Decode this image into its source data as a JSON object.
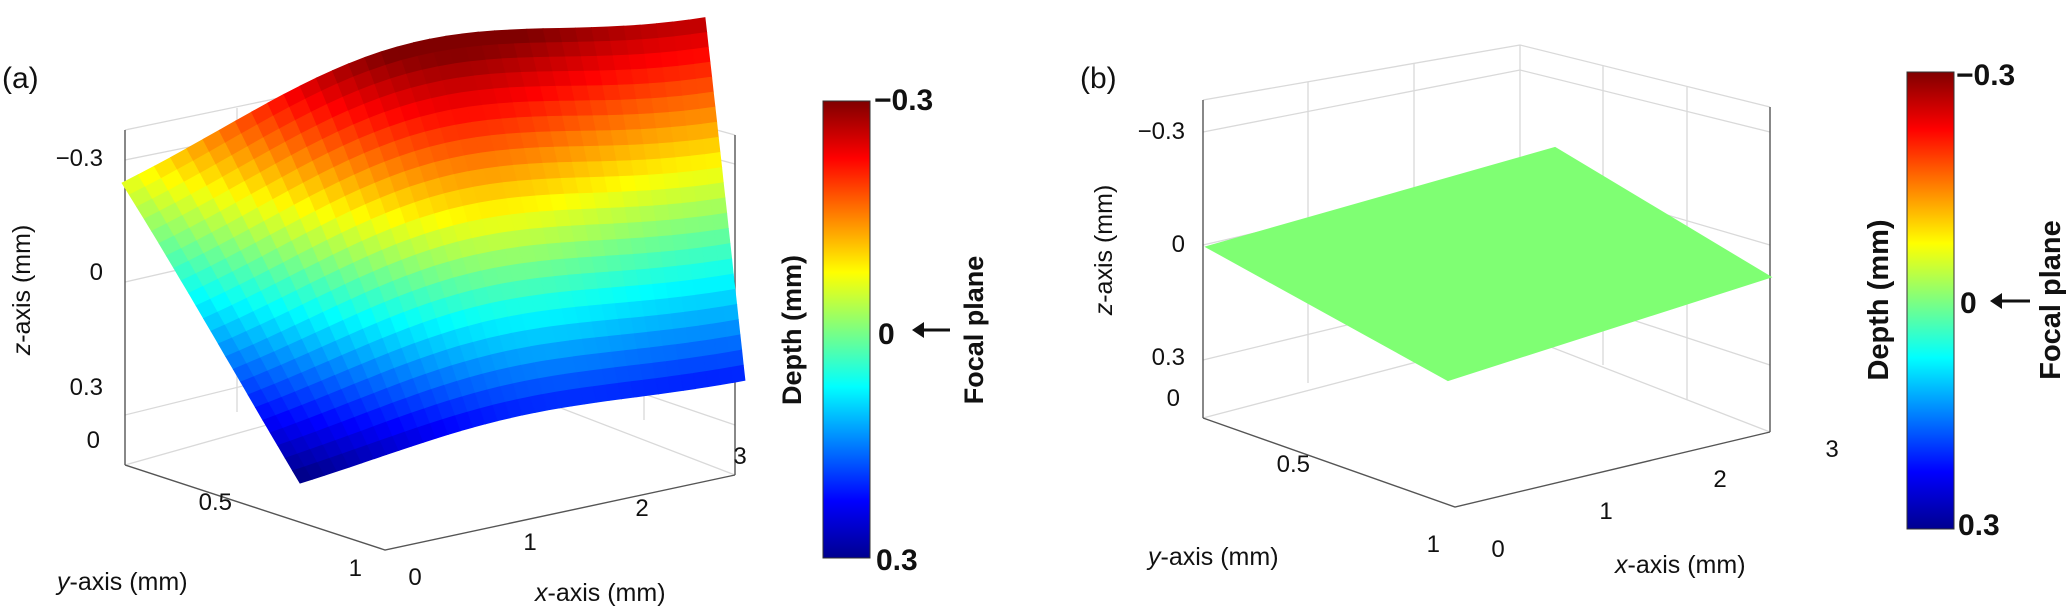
{
  "chart_data": [
    {
      "panel_label": "(a)",
      "type": "surface3d",
      "xlabel_var": "x",
      "xlabel_rest": "-axis (mm)",
      "ylabel_var": "y",
      "ylabel_rest": "-axis (mm)",
      "zlabel_var": "z",
      "zlabel_rest": "-axis (mm)",
      "x_ticks": [
        "0",
        "1",
        "2",
        "3"
      ],
      "y_ticks": [
        "0",
        "0.5",
        "1"
      ],
      "z_ticks": [
        "−0.3",
        "0",
        "0.3"
      ],
      "xlim": [
        0,
        3.2
      ],
      "ylim": [
        0,
        1.1
      ],
      "zlim": [
        0.35,
        -0.35
      ],
      "z_reversed": true,
      "surface": {
        "description": "curved depth surface",
        "corners": [
          {
            "x": 0,
            "y": 0,
            "z": 0.0
          },
          {
            "x": 0,
            "y": 1.0,
            "z": 0.32
          },
          {
            "x": 3.0,
            "y": 0,
            "z": -0.24
          },
          {
            "x": 3.0,
            "y": 1.0,
            "z": 0.22
          }
        ],
        "peak": {
          "x": 1.7,
          "y": 0,
          "z": -0.32
        }
      },
      "colorbar": {
        "title": "Depth (mm)",
        "top_label": "−0.3",
        "mid_label": "0",
        "bottom_label": "0.3",
        "annotation": "Focal plane",
        "range": [
          -0.3,
          0.3
        ],
        "colormap": "jet"
      }
    },
    {
      "panel_label": "(b)",
      "type": "surface3d",
      "xlabel_var": "x",
      "xlabel_rest": "-axis (mm)",
      "ylabel_var": "y",
      "ylabel_rest": "-axis (mm)",
      "zlabel_var": "z",
      "zlabel_rest": "-axis (mm)",
      "x_ticks": [
        "0",
        "1",
        "2",
        "3"
      ],
      "y_ticks": [
        "0",
        "0.5",
        "1"
      ],
      "z_ticks": [
        "−0.3",
        "0",
        "0.3"
      ],
      "xlim": [
        0,
        3.2
      ],
      "ylim": [
        0,
        1.1
      ],
      "zlim": [
        0.35,
        -0.35
      ],
      "z_reversed": true,
      "surface": {
        "description": "flat corrected surface at focal plane",
        "z_all": 0.0,
        "color": "#7fff73"
      },
      "colorbar": {
        "title": "Depth (mm)",
        "top_label": "−0.3",
        "mid_label": "0",
        "bottom_label": "0.3",
        "annotation": "Focal plane",
        "range": [
          -0.3,
          0.3
        ],
        "colormap": "jet"
      }
    }
  ]
}
